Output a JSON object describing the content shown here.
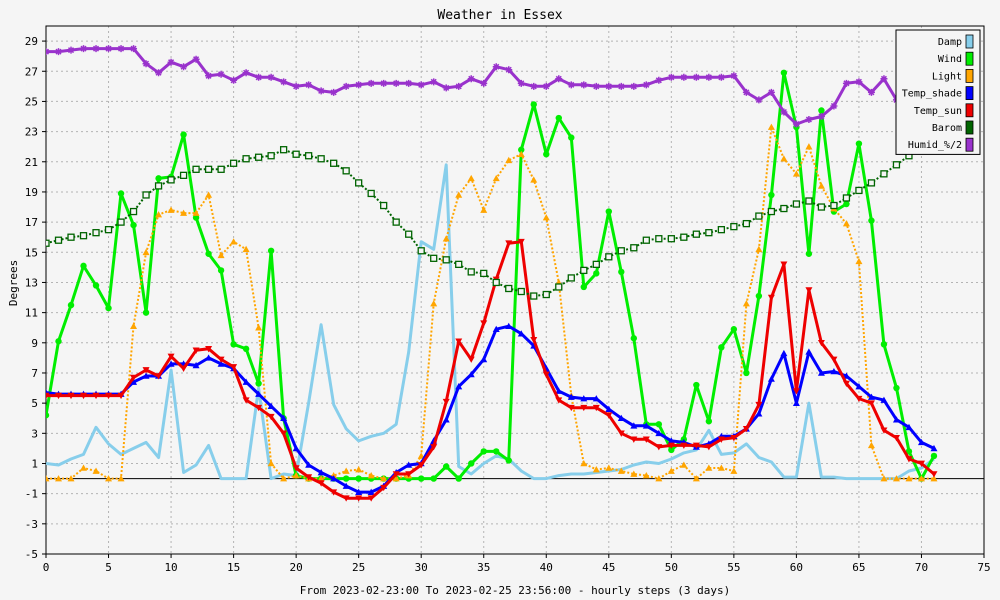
{
  "chart_data": {
    "type": "line",
    "title": "Weather in Essex",
    "xlabel": "From 2023-02-23:00 To 2023-02-25 23:56:00 - hourly steps (3 days)",
    "ylabel": "Degrees",
    "xlim": [
      0,
      75
    ],
    "ylim": [
      -5,
      30
    ],
    "x_ticks": [
      0,
      5,
      10,
      15,
      20,
      25,
      30,
      35,
      40,
      45,
      50,
      55,
      60,
      65,
      70,
      75
    ],
    "y_ticks": [
      -5,
      -3,
      -1,
      1,
      3,
      5,
      7,
      9,
      11,
      13,
      15,
      17,
      19,
      21,
      23,
      25,
      27,
      29
    ],
    "grid": true,
    "legend_position": "top-right",
    "colors": {
      "background": "#f5f5f5",
      "grid": "#b4b4b4",
      "axis": "#000000",
      "damp": "#87ceeb",
      "wind": "#00ee00",
      "light": "#ffa500",
      "temp_shade": "#0000ff",
      "temp_sun": "#ee0000",
      "barom": "#006400",
      "humid": "#9932cc"
    },
    "series": [
      {
        "name": "Damp",
        "color": "#87ceeb",
        "marker": "none",
        "style": "solid",
        "width": 3,
        "values": [
          1.0,
          0.9,
          1.3,
          1.6,
          3.4,
          2.3,
          1.6,
          2.0,
          2.4,
          1.4,
          7.2,
          0.4,
          0.9,
          2.2,
          0.0,
          0.0,
          0.0,
          6.0,
          0.0,
          0.3,
          0.2,
          5.0,
          10.2,
          4.9,
          3.3,
          2.5,
          2.8,
          3.0,
          3.6,
          8.4,
          15.7,
          15.2,
          20.8,
          0.8,
          0.3,
          1.0,
          1.5,
          1.3,
          0.5,
          0.0,
          0.0,
          0.2,
          0.3,
          0.3,
          0.4,
          0.5,
          0.6,
          0.9,
          1.1,
          1.0,
          1.3,
          1.7,
          1.9,
          3.2,
          1.6,
          1.7,
          2.3,
          1.4,
          1.1,
          0.1,
          0.1,
          5.0,
          0.1,
          0.1,
          0.0,
          0.0,
          0.0,
          0.0,
          0.0,
          0.5,
          0.7,
          1.3
        ]
      },
      {
        "name": "Wind",
        "color": "#00ee00",
        "marker": "circle",
        "style": "solid",
        "width": 3,
        "values": [
          4.2,
          9.1,
          11.5,
          14.1,
          12.8,
          11.3,
          18.9,
          16.8,
          11.0,
          19.9,
          20.0,
          22.8,
          17.3,
          14.9,
          13.8,
          8.9,
          8.6,
          6.3,
          15.1,
          4.0,
          0.2,
          0.0,
          0.0,
          0.0,
          0.0,
          0.0,
          0.0,
          0.0,
          0.0,
          0.0,
          0.0,
          0.0,
          0.8,
          0.0,
          1.0,
          1.8,
          1.8,
          1.2,
          21.8,
          24.8,
          21.5,
          23.9,
          22.6,
          12.7,
          13.6,
          17.7,
          13.7,
          9.3,
          3.6,
          3.6,
          1.9,
          2.6,
          6.2,
          3.8,
          8.7,
          9.9,
          7.0,
          12.1,
          18.8,
          26.9,
          23.3,
          14.9,
          24.4,
          17.7,
          18.2,
          22.2,
          17.1,
          8.9,
          6.0,
          1.8,
          0.0,
          1.5
        ]
      },
      {
        "name": "Light",
        "color": "#ffa500",
        "marker": "triangle",
        "style": "dotted",
        "width": 2,
        "values": [
          0.0,
          0.0,
          0.0,
          0.7,
          0.5,
          0.0,
          0.0,
          10.1,
          15.0,
          17.5,
          17.8,
          17.6,
          17.6,
          18.8,
          14.8,
          15.7,
          15.2,
          10.0,
          1.0,
          0.0,
          0.2,
          0.0,
          0.0,
          0.2,
          0.5,
          0.6,
          0.2,
          0.0,
          0.0,
          0.2,
          1.5,
          11.6,
          15.9,
          18.8,
          19.9,
          17.8,
          19.9,
          21.1,
          21.5,
          19.8,
          17.3,
          13.0,
          5.5,
          1.0,
          0.6,
          0.7,
          0.5,
          0.3,
          0.2,
          0.0,
          0.5,
          0.9,
          0.0,
          0.7,
          0.7,
          0.5,
          11.6,
          15.2,
          23.3,
          21.2,
          20.2,
          22.0,
          19.4,
          17.9,
          16.9,
          14.4,
          2.2,
          0.0,
          0.0,
          0.0,
          0.0,
          0.0
        ]
      },
      {
        "name": "Temp_shade",
        "color": "#0000ff",
        "marker": "triangle",
        "style": "solid",
        "width": 3,
        "values": [
          5.7,
          5.6,
          5.6,
          5.6,
          5.6,
          5.6,
          5.6,
          6.4,
          6.8,
          6.8,
          7.6,
          7.6,
          7.5,
          8.0,
          7.6,
          7.3,
          6.4,
          5.6,
          4.8,
          4.0,
          2.0,
          0.9,
          0.4,
          0.0,
          -0.5,
          -0.9,
          -0.9,
          -0.5,
          0.4,
          0.9,
          1.0,
          2.5,
          3.9,
          6.1,
          6.9,
          7.9,
          9.9,
          10.1,
          9.6,
          8.8,
          7.3,
          5.8,
          5.4,
          5.3,
          5.3,
          4.6,
          4.0,
          3.5,
          3.5,
          3.0,
          2.5,
          2.4,
          2.1,
          2.3,
          2.8,
          2.8,
          3.3,
          4.3,
          6.6,
          8.3,
          5.0,
          8.4,
          7.0,
          7.1,
          6.8,
          6.1,
          5.4,
          5.2,
          3.9,
          3.4,
          2.4,
          2.0
        ]
      },
      {
        "name": "Temp_sun",
        "color": "#ee0000",
        "marker": "triangle-down",
        "style": "solid",
        "width": 3,
        "values": [
          5.5,
          5.5,
          5.5,
          5.5,
          5.5,
          5.5,
          5.5,
          6.7,
          7.2,
          6.8,
          8.1,
          7.3,
          8.5,
          8.6,
          7.9,
          7.4,
          5.2,
          4.7,
          4.1,
          3.0,
          0.7,
          0.1,
          -0.3,
          -0.9,
          -1.3,
          -1.3,
          -1.3,
          -0.6,
          0.3,
          0.3,
          0.9,
          2.1,
          5.1,
          9.1,
          7.9,
          10.3,
          13.2,
          15.6,
          15.7,
          9.2,
          6.9,
          5.2,
          4.7,
          4.7,
          4.7,
          4.2,
          3.0,
          2.6,
          2.6,
          2.1,
          2.2,
          2.2,
          2.2,
          2.1,
          2.6,
          2.7,
          3.3,
          4.9,
          12.0,
          14.2,
          5.8,
          12.5,
          9.0,
          7.9,
          6.3,
          5.3,
          5.0,
          3.2,
          2.7,
          1.3,
          1.0,
          0.3
        ]
      },
      {
        "name": "Barom",
        "color": "#006400",
        "marker": "square",
        "style": "dotted",
        "width": 2,
        "values": [
          15.6,
          15.8,
          16.0,
          16.1,
          16.3,
          16.5,
          17.0,
          17.7,
          18.8,
          19.4,
          19.8,
          20.1,
          20.5,
          20.5,
          20.5,
          20.9,
          21.2,
          21.3,
          21.4,
          21.8,
          21.5,
          21.4,
          21.2,
          20.9,
          20.4,
          19.6,
          18.9,
          18.1,
          17.0,
          16.2,
          15.1,
          14.6,
          14.5,
          14.2,
          13.7,
          13.6,
          13.0,
          12.6,
          12.4,
          12.1,
          12.2,
          12.7,
          13.3,
          13.8,
          14.2,
          14.7,
          15.1,
          15.3,
          15.8,
          15.9,
          15.9,
          16.0,
          16.2,
          16.3,
          16.5,
          16.7,
          16.9,
          17.4,
          17.7,
          17.9,
          18.2,
          18.4,
          18.0,
          18.1,
          18.6,
          19.1,
          19.6,
          20.2,
          20.8,
          21.4,
          22.0,
          22.3
        ]
      },
      {
        "name": "Humid_%/2",
        "color": "#9932cc",
        "marker": "star",
        "style": "solid",
        "width": 3,
        "values": [
          28.3,
          28.3,
          28.4,
          28.5,
          28.5,
          28.5,
          28.5,
          28.5,
          27.5,
          26.9,
          27.6,
          27.3,
          27.8,
          26.7,
          26.8,
          26.4,
          26.9,
          26.6,
          26.6,
          26.3,
          26.0,
          26.1,
          25.7,
          25.6,
          26.0,
          26.1,
          26.2,
          26.2,
          26.2,
          26.2,
          26.1,
          26.3,
          25.9,
          26.0,
          26.5,
          26.2,
          27.3,
          27.1,
          26.2,
          26.0,
          26.0,
          26.5,
          26.1,
          26.1,
          26.0,
          26.0,
          26.0,
          26.0,
          26.1,
          26.4,
          26.6,
          26.6,
          26.6,
          26.6,
          26.6,
          26.7,
          25.6,
          25.1,
          25.6,
          24.3,
          23.5,
          23.8,
          24.0,
          24.7,
          26.2,
          26.3,
          25.6,
          26.5,
          25.1,
          25.2,
          25.0,
          25.3
        ]
      }
    ]
  }
}
